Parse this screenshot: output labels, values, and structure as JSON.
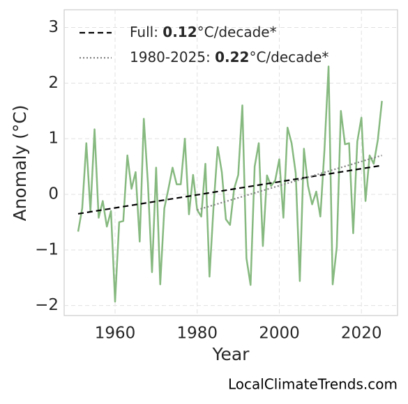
{
  "chart_data": {
    "type": "line",
    "x_label": "Year",
    "y_label": "Anomaly (°C)",
    "source": "LocalClimateTrends.com",
    "x": [
      1951,
      1952,
      1953,
      1954,
      1955,
      1956,
      1957,
      1958,
      1959,
      1960,
      1961,
      1962,
      1963,
      1964,
      1965,
      1966,
      1967,
      1968,
      1969,
      1970,
      1971,
      1972,
      1973,
      1974,
      1975,
      1976,
      1977,
      1978,
      1979,
      1980,
      1981,
      1982,
      1983,
      1984,
      1985,
      1986,
      1987,
      1988,
      1989,
      1990,
      1991,
      1992,
      1993,
      1994,
      1995,
      1996,
      1997,
      1998,
      1999,
      2000,
      2001,
      2002,
      2003,
      2004,
      2005,
      2006,
      2007,
      2008,
      2009,
      2010,
      2011,
      2012,
      2013,
      2014,
      2015,
      2016,
      2017,
      2018,
      2019,
      2020,
      2021,
      2022,
      2023,
      2024,
      2025
    ],
    "values": [
      -0.67,
      -0.25,
      0.92,
      -0.3,
      1.17,
      -0.42,
      -0.12,
      -0.58,
      -0.3,
      -1.93,
      -0.5,
      -0.48,
      0.7,
      0.1,
      0.4,
      -0.85,
      1.36,
      0.2,
      -1.4,
      0.48,
      -1.62,
      -0.25,
      0.1,
      0.48,
      0.18,
      0.18,
      1.0,
      -0.36,
      0.35,
      -0.28,
      -0.4,
      0.55,
      -1.48,
      -0.2,
      0.85,
      0.4,
      -0.45,
      -0.55,
      0.1,
      0.35,
      1.6,
      -1.15,
      -1.63,
      0.5,
      0.92,
      -0.93,
      0.34,
      0.15,
      0.25,
      0.63,
      -0.42,
      1.2,
      0.92,
      0.38,
      -1.56,
      0.82,
      0.15,
      -0.18,
      0.05,
      -0.4,
      0.8,
      2.3,
      -1.62,
      -0.95,
      1.5,
      0.9,
      0.92,
      -0.7,
      0.95,
      1.38,
      -0.12,
      0.7,
      0.55,
      0.98,
      1.68
    ],
    "color": "#86b97f",
    "trends": [
      {
        "name": [
          "Full: ",
          "0.12",
          "°C/decade*"
        ],
        "x": [
          1951,
          2025
        ],
        "values": [
          -0.35,
          0.52
        ],
        "color": "#000000",
        "dash": "8,5"
      },
      {
        "name": [
          "1980-2025: ",
          "0.22",
          "°C/decade*"
        ],
        "x": [
          1980,
          2025
        ],
        "values": [
          -0.28,
          0.7
        ],
        "color": "#808080",
        "dash": "2,3"
      }
    ],
    "xlim": [
      1947.6,
      2028.8
    ],
    "ylim": [
      -2.18,
      3.32
    ],
    "xticks": [
      1960,
      1980,
      2000,
      2020
    ],
    "yticks": [
      {
        "value": -2,
        "label": "−2"
      },
      {
        "value": -1,
        "label": "−1"
      },
      0,
      1,
      2,
      3
    ],
    "grid": true,
    "legend": "upper left"
  }
}
